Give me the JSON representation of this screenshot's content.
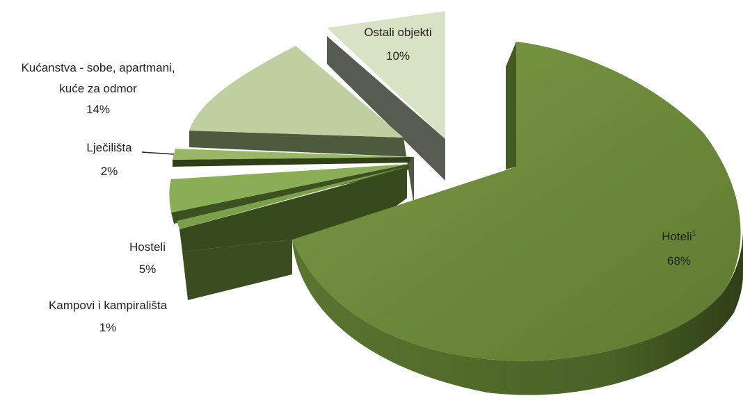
{
  "chart_data": {
    "type": "pie",
    "style": "3d-exploded",
    "slices": [
      {
        "label": "Hoteli",
        "superscript": "1",
        "value": 68,
        "value_label": "68%",
        "color": "#6e8b3d"
      },
      {
        "label": "Kampovi i kampirališta",
        "value": 1,
        "value_label": "1%",
        "color": "#7ba04a"
      },
      {
        "label": "Hosteli",
        "value": 5,
        "value_label": "5%",
        "color": "#8aae56"
      },
      {
        "label": "Lječilišta",
        "value": 2,
        "value_label": "2%",
        "color": "#98b868"
      },
      {
        "label": "Kućanstva - sobe, apartmani, kuće za odmor",
        "value": 14,
        "value_label": "14%",
        "color": "#bfcf9f"
      },
      {
        "label": "Ostali objekti",
        "value": 10,
        "value_label": "10%",
        "color": "#d8e2c4"
      }
    ],
    "legend": "none"
  }
}
